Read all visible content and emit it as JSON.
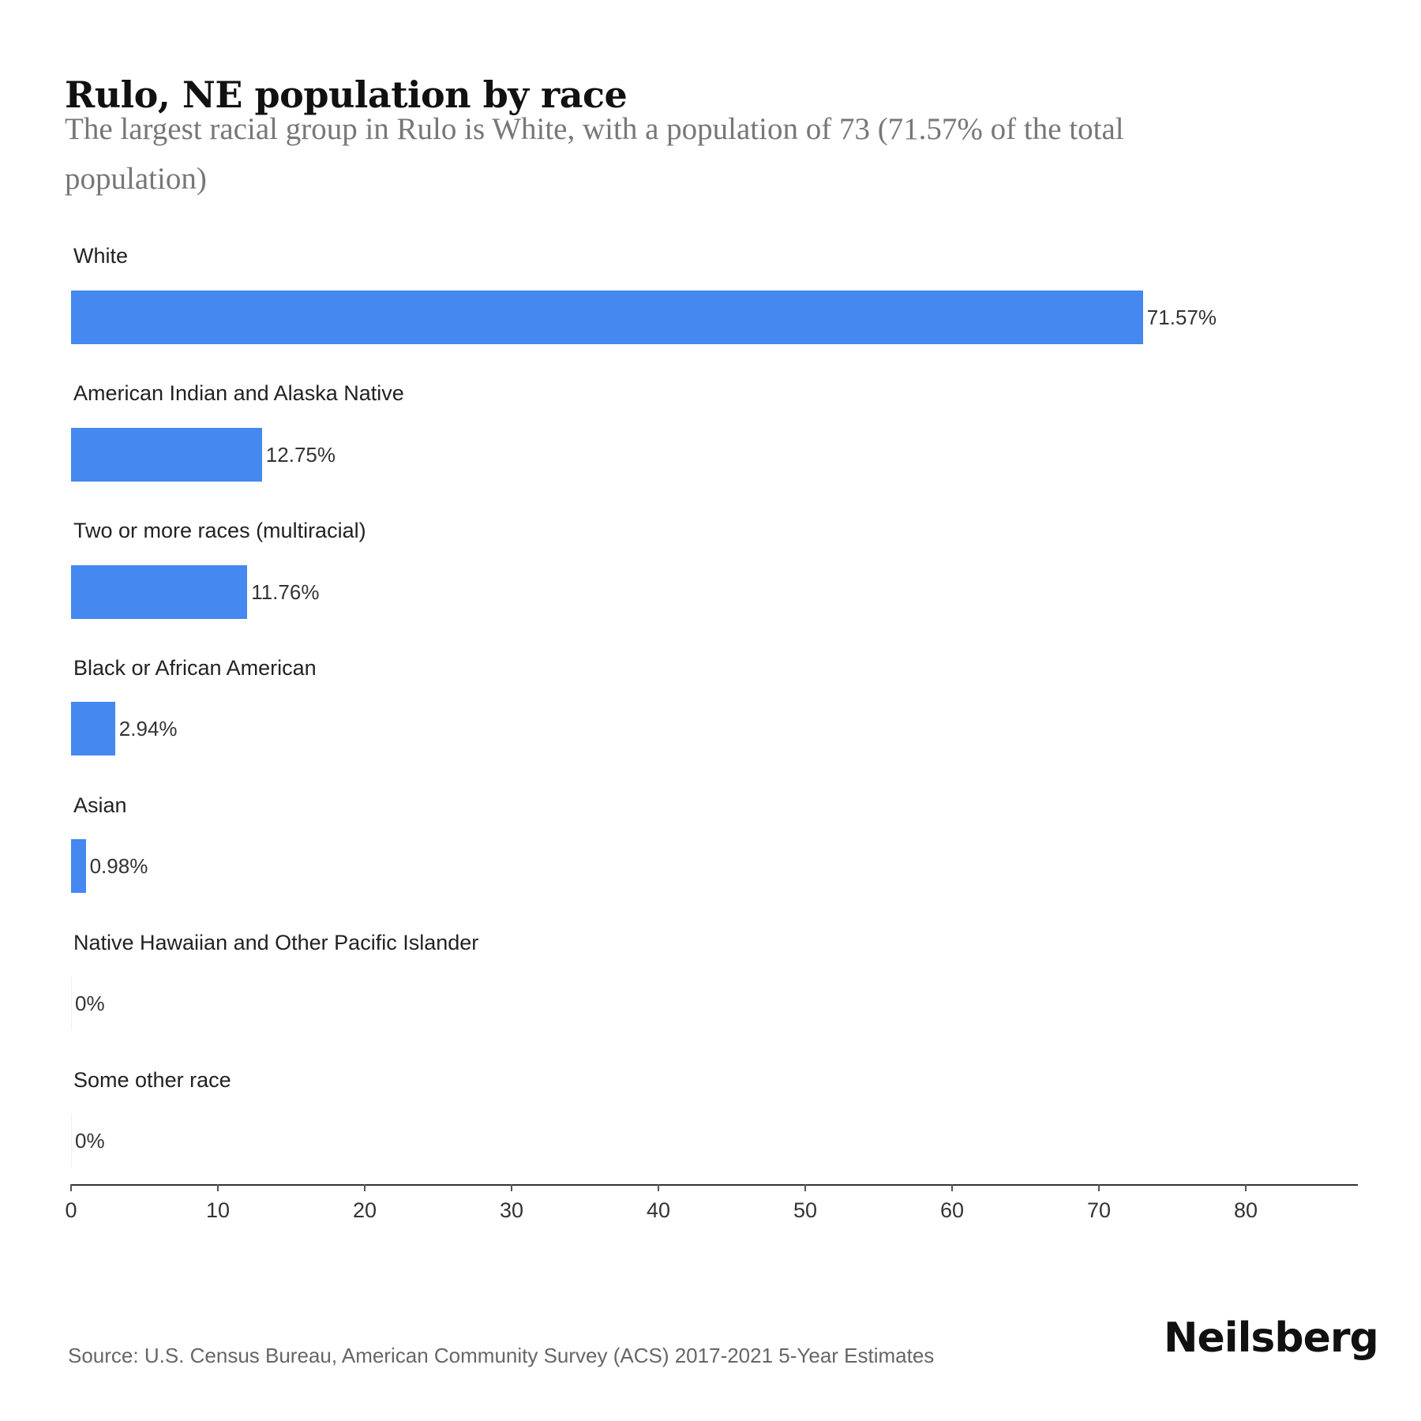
{
  "header": {
    "title": "Rulo, NE population by race",
    "subtitle": "The largest racial group in Rulo is White, with a population of 73 (71.57% of the total population)"
  },
  "colors": {
    "bar": "#4488f0",
    "axis": "#333333",
    "title": "#111111",
    "subtitle": "#777777",
    "source": "#666666"
  },
  "chart_data": {
    "type": "bar",
    "orientation": "horizontal",
    "title": "Rulo, NE population by race",
    "subtitle": "The largest racial group in Rulo is White, with a population of 73 (71.57% of the total population)",
    "categories": [
      "White",
      "American Indian and Alaska Native",
      "Two or more races (multiracial)",
      "Black or African American",
      "Asian",
      "Native Hawaiian and Other Pacific Islander",
      "Some other race"
    ],
    "values": [
      73,
      13,
      12,
      3,
      1,
      0,
      0
    ],
    "value_labels": [
      "71.57%",
      "12.75%",
      "11.76%",
      "2.94%",
      "0.98%",
      "0%",
      "0%"
    ],
    "percentages": [
      71.57,
      12.75,
      11.76,
      2.94,
      0.98,
      0,
      0
    ],
    "xlabel": "",
    "ylabel": "",
    "xlim": [
      0,
      87.6
    ],
    "xticks": [
      0,
      10,
      20,
      30,
      40,
      50,
      60,
      70,
      80
    ],
    "grid": false,
    "legend": null,
    "source": "Source: U.S. Census Bureau, American Community Survey (ACS) 2017-2021 5-Year Estimates"
  },
  "rows": [
    {
      "label": "White",
      "value": 73,
      "value_label": "71.57%"
    },
    {
      "label": "American Indian and Alaska Native",
      "value": 13,
      "value_label": "12.75%"
    },
    {
      "label": "Two or more races (multiracial)",
      "value": 12,
      "value_label": "11.76%"
    },
    {
      "label": "Black or African American",
      "value": 3,
      "value_label": "2.94%"
    },
    {
      "label": "Asian",
      "value": 1,
      "value_label": "0.98%"
    },
    {
      "label": "Native Hawaiian and Other Pacific Islander",
      "value": 0,
      "value_label": "0%"
    },
    {
      "label": "Some other race",
      "value": 0,
      "value_label": "0%"
    }
  ],
  "axis": {
    "ticks": [
      "0",
      "10",
      "20",
      "30",
      "40",
      "50",
      "60",
      "70",
      "80"
    ]
  },
  "footer": {
    "source": "Source: U.S. Census Bureau, American Community Survey (ACS) 2017-2021 5-Year Estimates",
    "logo": "Neilsberg"
  }
}
